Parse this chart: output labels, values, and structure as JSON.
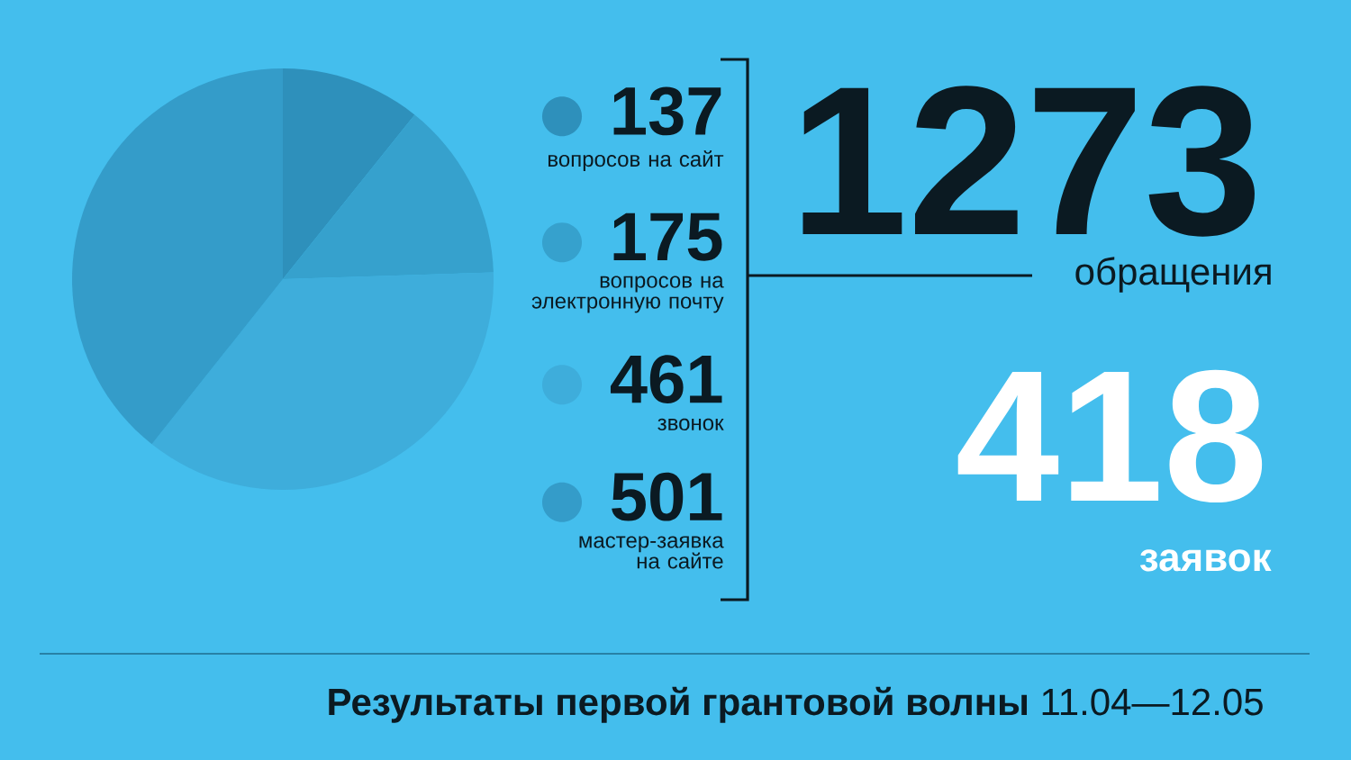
{
  "chart_data": {
    "type": "pie",
    "title": "**Результаты первой грантовой волны** 11.04—12.05",
    "categories": [
      "вопросов на сайт",
      "вопросов на электронную почту",
      "звонок",
      "мастер-заявка на сайте"
    ],
    "values": [
      137,
      175,
      461,
      501
    ],
    "colors": [
      "#2e90bb",
      "#36a1cd",
      "#3eaddb",
      "#349cc9"
    ],
    "data_labels": true,
    "legend": "right",
    "annotations": [
      "1273",
      "обращения",
      "418",
      "заявок"
    ]
  }
}
